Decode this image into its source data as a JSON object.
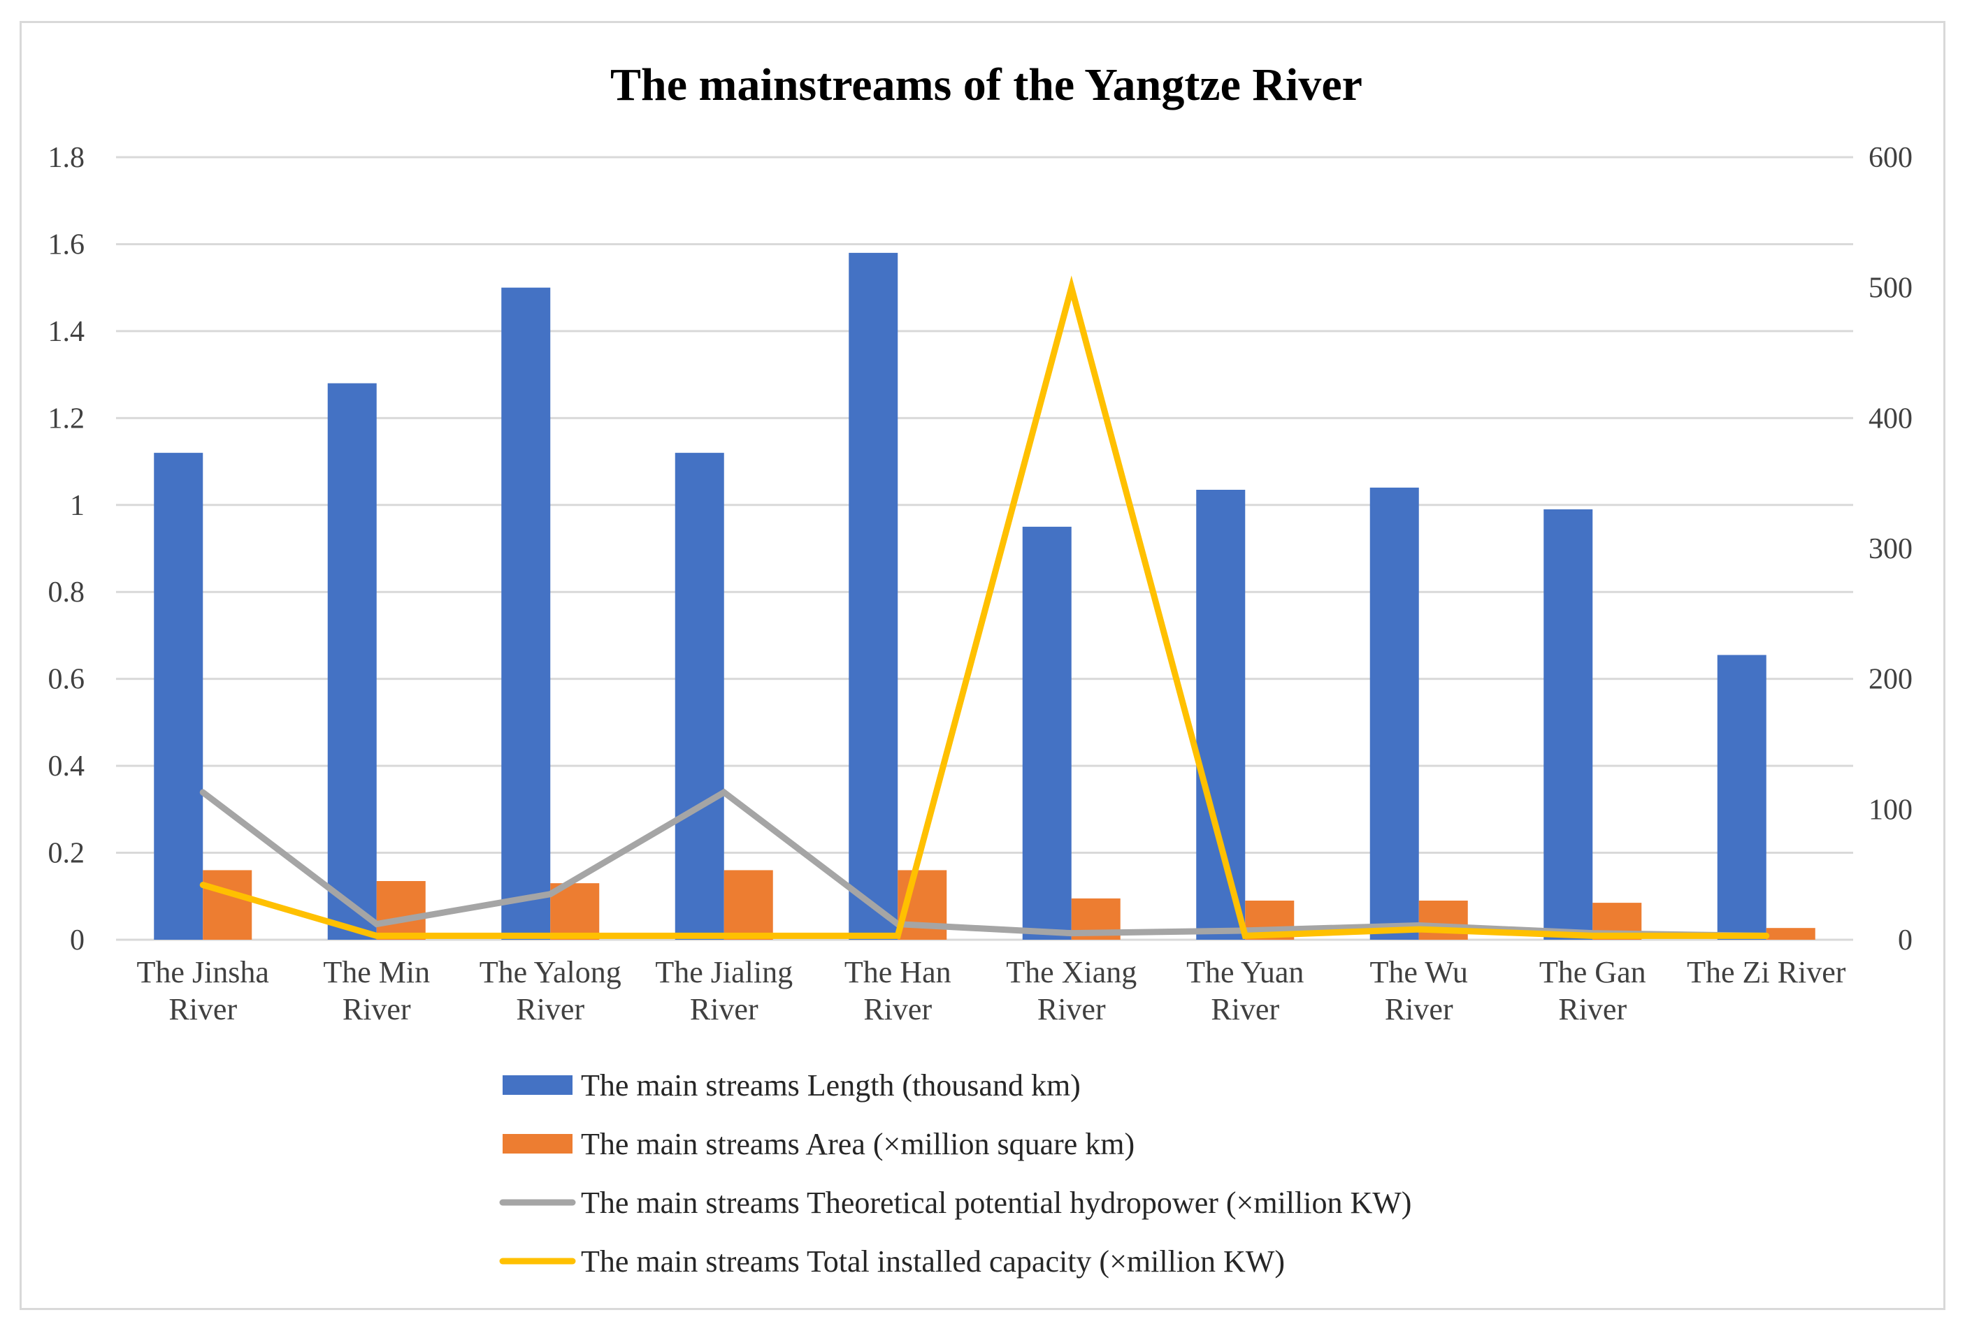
{
  "chart_data": {
    "type": "bar",
    "title": "The mainstreams of the Yangtze River",
    "categories": [
      [
        "The Jinsha",
        "River"
      ],
      [
        "The Min",
        "River"
      ],
      [
        "The Yalong",
        "River"
      ],
      [
        "The Jialing",
        "River"
      ],
      [
        "The Han",
        "River"
      ],
      [
        "The Xiang",
        "River"
      ],
      [
        "The Yuan",
        "River"
      ],
      [
        "The Wu",
        "River"
      ],
      [
        "The Gan",
        "River"
      ],
      [
        "The Zi River"
      ]
    ],
    "left_axis": {
      "ylim": [
        0,
        1.8
      ],
      "ticks": [
        "0",
        "0.2",
        "0.4",
        "0.6",
        "0.8",
        "1",
        "1.2",
        "1.4",
        "1.6",
        "1.8"
      ],
      "tick_values": [
        0,
        0.2,
        0.4,
        0.6,
        0.8,
        1.0,
        1.2,
        1.4,
        1.6,
        1.8
      ]
    },
    "right_axis": {
      "ylim": [
        0,
        600
      ],
      "ticks": [
        "0",
        "100",
        "200",
        "300",
        "400",
        "500",
        "600"
      ],
      "tick_values": [
        0,
        100,
        200,
        300,
        400,
        500,
        600
      ]
    },
    "series": [
      {
        "name": "The main streams Length (thousand km)",
        "type": "bar",
        "axis": "left",
        "color": "#4472C4",
        "values": [
          1.12,
          1.28,
          1.5,
          1.12,
          1.58,
          0.95,
          1.035,
          1.04,
          0.99,
          0.655
        ]
      },
      {
        "name": "The main streams Area (×million square km)",
        "type": "bar",
        "axis": "left",
        "color": "#ED7D31",
        "values": [
          0.16,
          0.135,
          0.13,
          0.16,
          0.16,
          0.095,
          0.09,
          0.09,
          0.085,
          0.027
        ]
      },
      {
        "name": "The main streams Theoretical potential hydropower (×million KW)",
        "type": "line",
        "axis": "right",
        "color": "#A5A5A5",
        "values": [
          113,
          12,
          35,
          113,
          12,
          5,
          7,
          11,
          5,
          3
        ]
      },
      {
        "name": "The main streams Total installed capacity (×million KW)",
        "type": "line",
        "axis": "right",
        "color": "#FFC000",
        "values": [
          42,
          3,
          3,
          3,
          3,
          500,
          3,
          8,
          3,
          3
        ]
      }
    ],
    "legend_position": "bottom"
  }
}
